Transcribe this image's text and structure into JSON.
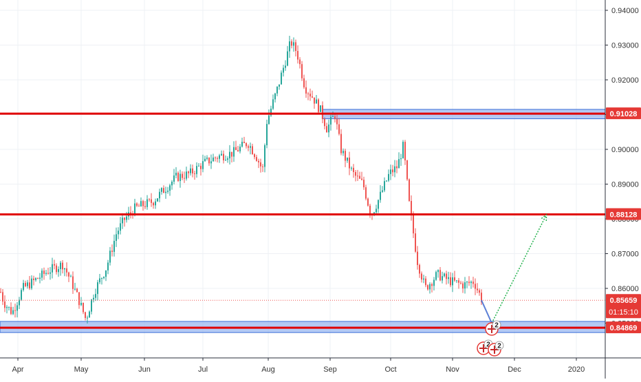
{
  "chart_data": {
    "type": "candlestick",
    "title": "",
    "xlabel": "",
    "ylabel": "",
    "x_tick_labels": [
      "Apr",
      "May",
      "Jun",
      "Jul",
      "Aug",
      "Sep",
      "Oct",
      "Nov",
      "Dec",
      "2020"
    ],
    "y_tick_labels": [
      "0.94000",
      "0.93000",
      "0.92000",
      "0.91000",
      "0.90000",
      "0.89000",
      "0.88000",
      "0.87000",
      "0.86000",
      "0.85000"
    ],
    "ylim": [
      0.8395,
      0.942
    ],
    "grid": true,
    "price_path": [
      [
        "2019-03-20",
        0.866
      ],
      [
        "2019-03-25",
        0.856
      ],
      [
        "2019-03-29",
        0.853
      ],
      [
        "2019-04-03",
        0.86
      ],
      [
        "2019-04-08",
        0.862
      ],
      [
        "2019-04-15",
        0.865
      ],
      [
        "2019-04-22",
        0.867
      ],
      [
        "2019-04-26",
        0.862
      ],
      [
        "2019-04-30",
        0.856
      ],
      [
        "2019-05-03",
        0.851
      ],
      [
        "2019-05-07",
        0.859
      ],
      [
        "2019-05-13",
        0.866
      ],
      [
        "2019-05-18",
        0.876
      ],
      [
        "2019-05-22",
        0.88
      ],
      [
        "2019-05-27",
        0.883
      ],
      [
        "2019-05-31",
        0.884
      ],
      [
        "2019-06-05",
        0.885
      ],
      [
        "2019-06-10",
        0.888
      ],
      [
        "2019-06-17",
        0.892
      ],
      [
        "2019-06-24",
        0.893
      ],
      [
        "2019-07-01",
        0.896
      ],
      [
        "2019-07-08",
        0.898
      ],
      [
        "2019-07-15",
        0.899
      ],
      [
        "2019-07-22",
        0.902
      ],
      [
        "2019-07-26",
        0.898
      ],
      [
        "2019-07-29",
        0.894
      ],
      [
        "2019-07-31",
        0.908
      ],
      [
        "2019-08-05",
        0.917
      ],
      [
        "2019-08-09",
        0.925
      ],
      [
        "2019-08-12",
        0.931
      ],
      [
        "2019-08-15",
        0.928
      ],
      [
        "2019-08-19",
        0.918
      ],
      [
        "2019-08-23",
        0.915
      ],
      [
        "2019-08-27",
        0.911
      ],
      [
        "2019-08-30",
        0.906
      ],
      [
        "2019-09-03",
        0.91
      ],
      [
        "2019-09-06",
        0.9
      ],
      [
        "2019-09-12",
        0.893
      ],
      [
        "2019-09-17",
        0.89
      ],
      [
        "2019-09-21",
        0.881
      ],
      [
        "2019-09-25",
        0.886
      ],
      [
        "2019-09-30",
        0.893
      ],
      [
        "2019-10-04",
        0.895
      ],
      [
        "2019-10-07",
        0.901
      ],
      [
        "2019-10-10",
        0.884
      ],
      [
        "2019-10-14",
        0.868
      ],
      [
        "2019-10-18",
        0.86
      ],
      [
        "2019-10-24",
        0.864
      ],
      [
        "2019-10-31",
        0.862
      ],
      [
        "2019-11-06",
        0.861
      ],
      [
        "2019-11-11",
        0.862
      ],
      [
        "2019-11-15",
        0.8566
      ]
    ],
    "horizontal_lines": [
      {
        "value": 0.91028,
        "label": "0.91028"
      },
      {
        "value": 0.88128,
        "label": "0.88128"
      },
      {
        "value": 0.84869,
        "label": "0.84869"
      }
    ],
    "zones": [
      {
        "from": "2019-08-28",
        "to_edge": true,
        "low": 0.9088,
        "high": 0.9115
      },
      {
        "from_edge": true,
        "to_edge": true,
        "low": 0.8473,
        "high": 0.8505
      }
    ],
    "current_price": {
      "value": 0.85659,
      "label": "0.85659",
      "countdown": "01:15:10"
    },
    "projection": {
      "points": [
        [
          "2019-11-15",
          0.8566
        ],
        [
          "2019-11-20",
          0.85
        ],
        [
          "2019-12-17",
          0.8812
        ]
      ]
    },
    "event_markers": [
      {
        "date": "2019-11-20",
        "count": "2"
      },
      {
        "date": "2019-11-17",
        "count": "2"
      },
      {
        "date": "2019-11-21",
        "count": "2"
      }
    ],
    "colors": {
      "up": "#26a69a",
      "down": "#ef5350",
      "level_line": "#e00000",
      "zone_fill": "#9bb8f0",
      "zone_border": "#3a6fd8",
      "projection": "#22b14c",
      "price_label_bg": "#e53935",
      "grid": "#eef0f4"
    }
  }
}
